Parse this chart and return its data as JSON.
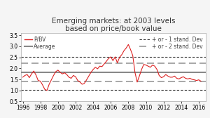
{
  "title": "Emerging markets: at 2003 levels\nbased on price/book value",
  "title_fontsize": 7.5,
  "xlim": [
    1995.8,
    2016.8
  ],
  "ylim": [
    0.5,
    3.6
  ],
  "yticks": [
    0.5,
    1.0,
    1.5,
    2.0,
    2.5,
    3.0,
    3.5
  ],
  "xticks": [
    1996,
    1998,
    2000,
    2002,
    2004,
    2006,
    2008,
    2010,
    2012,
    2014,
    2016
  ],
  "average_line": 1.82,
  "sd1_upper": 2.52,
  "sd1_lower": 1.02,
  "sd2_upper": 2.22,
  "sd2_lower": 1.42,
  "average_color": "#888888",
  "sd1_color": "#333333",
  "sd2_color": "#999999",
  "pbv_color": "#dd2222",
  "legend_fontsize": 5.5,
  "tick_fontsize": 5.5,
  "background_color": "#f5f5f5",
  "plot_bg_color": "#ffffff",
  "pbv_data": [
    [
      1996.0,
      1.6
    ],
    [
      1996.25,
      1.68
    ],
    [
      1996.5,
      1.72
    ],
    [
      1996.75,
      1.58
    ],
    [
      1997.0,
      1.75
    ],
    [
      1997.25,
      1.88
    ],
    [
      1997.5,
      1.7
    ],
    [
      1997.75,
      1.45
    ],
    [
      1998.0,
      1.42
    ],
    [
      1998.25,
      1.25
    ],
    [
      1998.5,
      1.05
    ],
    [
      1998.75,
      1.0
    ],
    [
      1999.0,
      1.28
    ],
    [
      1999.25,
      1.48
    ],
    [
      1999.5,
      1.68
    ],
    [
      1999.75,
      1.85
    ],
    [
      2000.0,
      1.92
    ],
    [
      2000.25,
      1.82
    ],
    [
      2000.5,
      1.75
    ],
    [
      2000.75,
      1.8
    ],
    [
      2001.0,
      1.72
    ],
    [
      2001.25,
      1.6
    ],
    [
      2001.5,
      1.55
    ],
    [
      2001.75,
      1.68
    ],
    [
      2002.0,
      1.62
    ],
    [
      2002.25,
      1.45
    ],
    [
      2002.5,
      1.38
    ],
    [
      2002.75,
      1.28
    ],
    [
      2003.0,
      1.32
    ],
    [
      2003.25,
      1.48
    ],
    [
      2003.5,
      1.65
    ],
    [
      2003.75,
      1.82
    ],
    [
      2004.0,
      1.95
    ],
    [
      2004.25,
      2.05
    ],
    [
      2004.5,
      1.98
    ],
    [
      2004.75,
      2.1
    ],
    [
      2005.0,
      2.08
    ],
    [
      2005.25,
      2.2
    ],
    [
      2005.5,
      2.32
    ],
    [
      2005.75,
      2.45
    ],
    [
      2006.0,
      2.52
    ],
    [
      2006.25,
      2.35
    ],
    [
      2006.5,
      2.52
    ],
    [
      2006.75,
      2.25
    ],
    [
      2007.0,
      2.5
    ],
    [
      2007.25,
      2.62
    ],
    [
      2007.5,
      2.8
    ],
    [
      2007.75,
      2.92
    ],
    [
      2008.0,
      3.08
    ],
    [
      2008.25,
      2.85
    ],
    [
      2008.5,
      2.58
    ],
    [
      2008.75,
      1.82
    ],
    [
      2009.0,
      1.38
    ],
    [
      2009.25,
      1.65
    ],
    [
      2009.5,
      1.95
    ],
    [
      2009.75,
      2.18
    ],
    [
      2010.0,
      2.15
    ],
    [
      2010.25,
      2.1
    ],
    [
      2010.5,
      2.05
    ],
    [
      2010.75,
      2.15
    ],
    [
      2011.0,
      2.1
    ],
    [
      2011.25,
      1.95
    ],
    [
      2011.5,
      1.68
    ],
    [
      2011.75,
      1.58
    ],
    [
      2012.0,
      1.62
    ],
    [
      2012.25,
      1.72
    ],
    [
      2012.5,
      1.65
    ],
    [
      2012.75,
      1.6
    ],
    [
      2013.0,
      1.6
    ],
    [
      2013.25,
      1.65
    ],
    [
      2013.5,
      1.55
    ],
    [
      2013.75,
      1.52
    ],
    [
      2014.0,
      1.58
    ],
    [
      2014.25,
      1.62
    ],
    [
      2014.5,
      1.55
    ],
    [
      2014.75,
      1.52
    ],
    [
      2015.0,
      1.55
    ],
    [
      2015.25,
      1.5
    ],
    [
      2015.5,
      1.48
    ],
    [
      2015.75,
      1.45
    ],
    [
      2016.0,
      1.48
    ],
    [
      2016.25,
      1.42
    ]
  ]
}
